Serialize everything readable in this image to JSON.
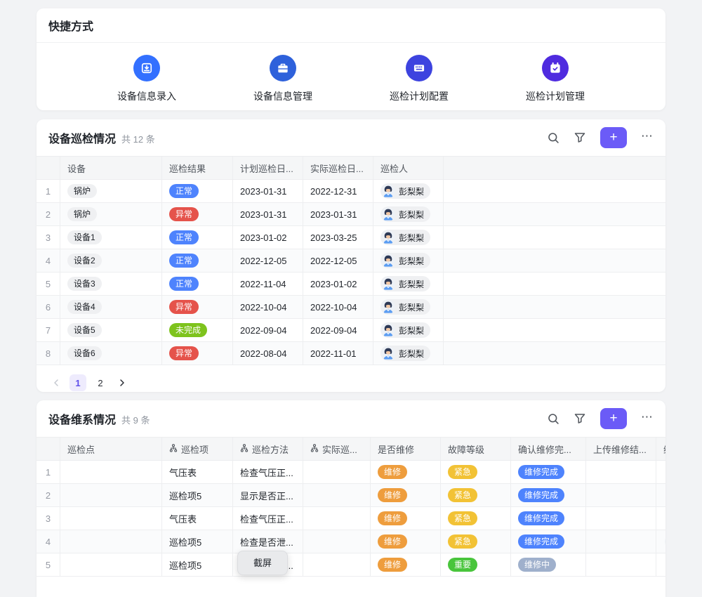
{
  "shortcuts": {
    "title": "快捷方式",
    "items": [
      {
        "label": "设备信息录入",
        "icon": "device-input-icon",
        "color": "#3370FF"
      },
      {
        "label": "设备信息管理",
        "icon": "briefcase-icon",
        "color": "#2E61DB"
      },
      {
        "label": "巡检计划配置",
        "icon": "keyboard-icon",
        "color": "#3D43DF"
      },
      {
        "label": "巡检计划管理",
        "icon": "calendar-check-icon",
        "color": "#4F2BDF"
      }
    ]
  },
  "toolbar": {
    "add_label": "+",
    "more_label": "⋯",
    "add_color": "#6B5BF7"
  },
  "badge_colors": {
    "正常": "#4E83FD",
    "异常": "#E5534B",
    "未完成": "#7EC31D",
    "维修": "#EE9D3D",
    "紧急": "#F2C235",
    "维修完成": "#4E83FD",
    "重要": "#49C53C",
    "维修中": "#9FB0CC"
  },
  "inspection": {
    "title": "设备巡检情况",
    "count": "共 12 条",
    "columns": [
      "",
      "设备",
      "巡检结果",
      "计划巡检日...",
      "实际巡检日...",
      "巡检人"
    ],
    "rows": [
      {
        "no": "1",
        "device": "锅炉",
        "result": "正常",
        "plan_date": "2023-01-31",
        "actual_date": "2022-12-31",
        "inspector": "彭梨梨"
      },
      {
        "no": "2",
        "device": "锅炉",
        "result": "异常",
        "plan_date": "2023-01-31",
        "actual_date": "2023-01-31",
        "inspector": "彭梨梨"
      },
      {
        "no": "3",
        "device": "设备1",
        "result": "正常",
        "plan_date": "2023-01-02",
        "actual_date": "2023-03-25",
        "inspector": "彭梨梨"
      },
      {
        "no": "4",
        "device": "设备2",
        "result": "正常",
        "plan_date": "2022-12-05",
        "actual_date": "2022-12-05",
        "inspector": "彭梨梨"
      },
      {
        "no": "5",
        "device": "设备3",
        "result": "正常",
        "plan_date": "2022-11-04",
        "actual_date": "2023-01-02",
        "inspector": "彭梨梨"
      },
      {
        "no": "6",
        "device": "设备4",
        "result": "异常",
        "plan_date": "2022-10-04",
        "actual_date": "2022-10-04",
        "inspector": "彭梨梨"
      },
      {
        "no": "7",
        "device": "设备5",
        "result": "未完成",
        "plan_date": "2022-09-04",
        "actual_date": "2022-09-04",
        "inspector": "彭梨梨"
      },
      {
        "no": "8",
        "device": "设备6",
        "result": "异常",
        "plan_date": "2022-08-04",
        "actual_date": "2022-11-01",
        "inspector": "彭梨梨"
      }
    ],
    "pagination": {
      "pages": [
        "1",
        "2"
      ],
      "active": "1",
      "prev_enabled": false,
      "next_enabled": true
    }
  },
  "maintenance": {
    "title": "设备维系情况",
    "count": "共 9 条",
    "columns": [
      {
        "label": "",
        "icon": false
      },
      {
        "label": "巡检点",
        "icon": false
      },
      {
        "label": "巡检项",
        "icon": true
      },
      {
        "label": "巡检方法",
        "icon": true
      },
      {
        "label": "实际巡...",
        "icon": true
      },
      {
        "label": "是否维修",
        "icon": false
      },
      {
        "label": "故障等级",
        "icon": false
      },
      {
        "label": "确认维修完...",
        "icon": false
      },
      {
        "label": "上传维修结...",
        "icon": false
      },
      {
        "label": "维",
        "icon": false
      }
    ],
    "rows": [
      {
        "no": "1",
        "point": "",
        "item": "气压表",
        "method": "检查气压正...",
        "actual": "",
        "repair": "维修",
        "level": "紧急",
        "confirm": "维修完成",
        "upload": "",
        "extra_avatar": false
      },
      {
        "no": "2",
        "point": "",
        "item": "巡检项5",
        "method": "显示是否正...",
        "actual": "",
        "repair": "维修",
        "level": "紧急",
        "confirm": "维修完成",
        "upload": "",
        "extra_avatar": false
      },
      {
        "no": "3",
        "point": "",
        "item": "气压表",
        "method": "检查气压正...",
        "actual": "",
        "repair": "维修",
        "level": "紧急",
        "confirm": "维修完成",
        "upload": "",
        "extra_avatar": false
      },
      {
        "no": "4",
        "point": "",
        "item": "巡检项5",
        "method": "检查是否泄...",
        "actual": "",
        "repair": "维修",
        "level": "紧急",
        "confirm": "维修完成",
        "upload": "",
        "extra_avatar": true
      },
      {
        "no": "5",
        "point": "",
        "item": "巡检项5",
        "method": "显示是否正...",
        "actual": "",
        "repair": "维修",
        "level": "重要",
        "confirm": "维修中",
        "upload": "",
        "extra_avatar": false
      }
    ]
  },
  "tooltip": {
    "label": "截屏"
  }
}
